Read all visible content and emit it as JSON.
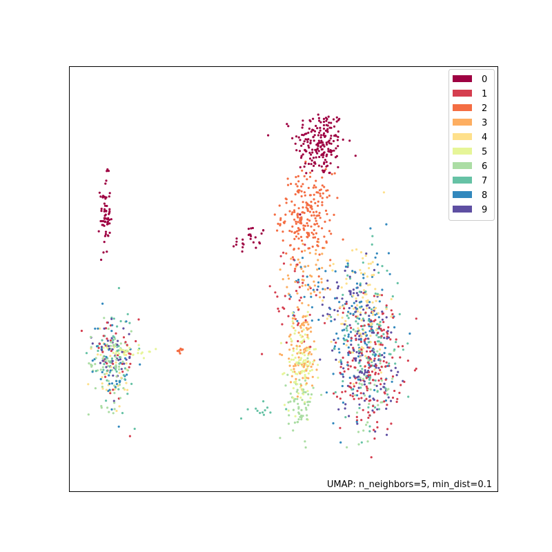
{
  "chart_data": {
    "type": "scatter",
    "title": "",
    "xlabel": "",
    "ylabel": "",
    "axes_ticks": "hidden",
    "grid": false,
    "legend_placement": "top-right",
    "annotation": "UMAP: n_neighbors=5, min_dist=0.1",
    "annotation_placement": "bottom-right",
    "xlim": [
      0,
      100
    ],
    "ylim": [
      0,
      100
    ],
    "point_count_estimate": 1797,
    "series": [
      {
        "name": "0",
        "color": "#9e0142"
      },
      {
        "name": "1",
        "color": "#d53e4f"
      },
      {
        "name": "2",
        "color": "#f46d43"
      },
      {
        "name": "3",
        "color": "#fdae61"
      },
      {
        "name": "4",
        "color": "#fee08b"
      },
      {
        "name": "5",
        "color": "#e6f598"
      },
      {
        "name": "6",
        "color": "#abdda4"
      },
      {
        "name": "7",
        "color": "#66c2a5"
      },
      {
        "name": "8",
        "color": "#3288bd"
      },
      {
        "name": "9",
        "color": "#5e4fa2"
      }
    ],
    "clusters": [
      {
        "label": "0",
        "cx": 58.5,
        "cy": 82.0,
        "sx": 3.0,
        "sy": 4.0,
        "n": 190
      },
      {
        "label": "0",
        "cx": 42.0,
        "cy": 59.0,
        "sx": 2.0,
        "sy": 2.0,
        "n": 25
      },
      {
        "label": "0",
        "cx": 8.3,
        "cy": 65.0,
        "sx": 0.6,
        "sy": 4.5,
        "n": 60
      },
      {
        "label": "2",
        "cx": 55.5,
        "cy": 65.0,
        "sx": 3.0,
        "sy": 5.0,
        "n": 210
      },
      {
        "label": "2",
        "cx": 26.0,
        "cy": 33.0,
        "sx": 0.7,
        "sy": 0.3,
        "n": 8
      },
      {
        "label": "1",
        "cx": 70.5,
        "cy": 30.0,
        "sx": 3.5,
        "sy": 8.0,
        "n": 180
      },
      {
        "label": "1",
        "cx": 10.0,
        "cy": 31.0,
        "sx": 3.0,
        "sy": 6.0,
        "n": 40
      },
      {
        "label": "1",
        "cx": 52.0,
        "cy": 45.0,
        "sx": 4.0,
        "sy": 6.0,
        "n": 40
      },
      {
        "label": "5",
        "cx": 54.0,
        "cy": 30.0,
        "sx": 1.8,
        "sy": 5.0,
        "n": 100
      },
      {
        "label": "5",
        "cx": 13.5,
        "cy": 33.0,
        "sx": 3.0,
        "sy": 0.8,
        "n": 35
      },
      {
        "label": "4",
        "cx": 68.5,
        "cy": 43.0,
        "sx": 3.0,
        "sy": 8.0,
        "n": 110
      },
      {
        "label": "4",
        "cx": 10.0,
        "cy": 28.0,
        "sx": 2.5,
        "sy": 5.0,
        "n": 30
      },
      {
        "label": "3",
        "cx": 54.5,
        "cy": 33.0,
        "sx": 2.0,
        "sy": 5.0,
        "n": 90
      },
      {
        "label": "3",
        "cx": 56.0,
        "cy": 52.0,
        "sx": 3.0,
        "sy": 4.0,
        "n": 50
      },
      {
        "label": "6",
        "cx": 9.5,
        "cy": 30.0,
        "sx": 2.5,
        "sy": 5.0,
        "n": 70
      },
      {
        "label": "6",
        "cx": 54.0,
        "cy": 21.0,
        "sx": 1.5,
        "sy": 4.0,
        "n": 60
      },
      {
        "label": "6",
        "cx": 70.0,
        "cy": 25.0,
        "sx": 3.0,
        "sy": 6.0,
        "n": 40
      },
      {
        "label": "7",
        "cx": 70.0,
        "cy": 35.0,
        "sx": 4.0,
        "sy": 10.0,
        "n": 110
      },
      {
        "label": "7",
        "cx": 10.0,
        "cy": 32.0,
        "sx": 2.5,
        "sy": 6.0,
        "n": 50
      },
      {
        "label": "7",
        "cx": 46.0,
        "cy": 19.0,
        "sx": 2.0,
        "sy": 1.0,
        "n": 12
      },
      {
        "label": "8",
        "cx": 68.0,
        "cy": 38.0,
        "sx": 4.0,
        "sy": 10.0,
        "n": 110
      },
      {
        "label": "8",
        "cx": 10.0,
        "cy": 30.0,
        "sx": 2.5,
        "sy": 6.0,
        "n": 40
      },
      {
        "label": "8",
        "cx": 55.0,
        "cy": 48.0,
        "sx": 2.5,
        "sy": 4.0,
        "n": 25
      },
      {
        "label": "9",
        "cx": 69.0,
        "cy": 33.0,
        "sx": 3.5,
        "sy": 8.0,
        "n": 130
      },
      {
        "label": "9",
        "cx": 10.0,
        "cy": 33.0,
        "sx": 2.5,
        "sy": 5.0,
        "n": 40
      },
      {
        "label": "9",
        "cx": 64.0,
        "cy": 45.0,
        "sx": 3.0,
        "sy": 5.0,
        "n": 30
      }
    ]
  }
}
